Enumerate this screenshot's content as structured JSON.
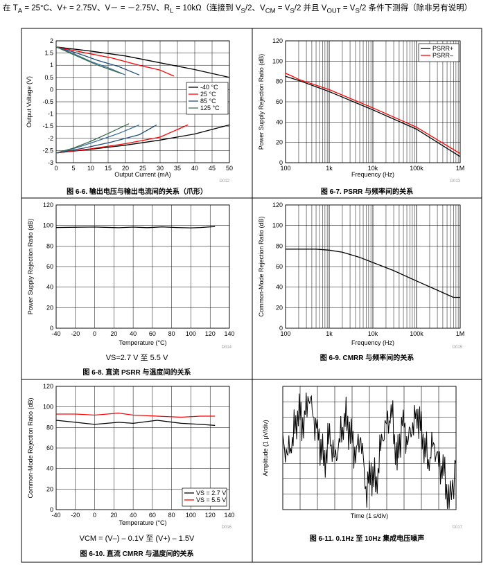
{
  "header": {
    "p1": "在 T",
    "p1sub": "A",
    "p2": " = 25°C、V+ = 2.75V、V－ = －2.75V、R",
    "p2sub": "L",
    "p3": " = 10kΩ（连接到 V",
    "p3sub": "S",
    "p4": "/2、V",
    "p4sub": "CM",
    "p5": " = V",
    "p5sub": "S",
    "p6": "/2 并且 V",
    "p6sub": "OUT",
    "p7": " = V",
    "p7sub": "S",
    "p8": "/2 条件下测得（除非另有说明）"
  },
  "colors": {
    "black": "#000000",
    "red": "#ff0000",
    "blue": "#1f4e79",
    "steel": "#3a6f9a",
    "green": "#3b6e4f"
  },
  "chart_data": [
    {
      "id": "fig-6-6",
      "type": "line",
      "title": "图 6-6. 输出电压与输出电流间的关系（爪形）",
      "xlabel": "Output Current (mA)",
      "ylabel": "Output Voltage (V)",
      "xlim": [
        0,
        50
      ],
      "ylim": [
        -3,
        2
      ],
      "xticks": [
        0,
        5,
        10,
        15,
        20,
        25,
        30,
        35,
        40,
        45,
        50
      ],
      "yticks": [
        -3,
        -2.5,
        -2,
        -1.5,
        -1,
        -0.5,
        0,
        0.5,
        1,
        1.5,
        2
      ],
      "xtick_labels": [
        "0",
        "5",
        "10",
        "15",
        "20",
        "25",
        "30",
        "35",
        "40",
        "45",
        "50"
      ],
      "ytick_labels": [
        "-3",
        "-2.5",
        "-2",
        "-1.5",
        "-1",
        "-0.5",
        "0",
        "0.5",
        "1",
        "1.5",
        "2"
      ],
      "code": "D012",
      "legend": [
        "-40 °C",
        "25 °C",
        "85 °C",
        "125 °C"
      ],
      "series": [
        {
          "name": "-40 °C",
          "color": "#000000",
          "x": [
            0,
            10,
            20,
            30,
            40,
            50
          ],
          "y": [
            1.75,
            1.58,
            1.38,
            1.1,
            0.82,
            0.5
          ]
        },
        {
          "name": "-40 °C",
          "color": "#000000",
          "x": [
            0,
            10,
            20,
            30,
            40,
            50
          ],
          "y": [
            -2.6,
            -2.45,
            -2.28,
            -2.07,
            -1.82,
            -1.45
          ]
        },
        {
          "name": "25 °C",
          "color": "#ff0000",
          "x": [
            0,
            8,
            16,
            24,
            30,
            34
          ],
          "y": [
            1.75,
            1.52,
            1.3,
            1.0,
            0.8,
            0.55
          ]
        },
        {
          "name": "25 °C",
          "color": "#ff0000",
          "x": [
            0,
            10,
            20,
            30,
            38
          ],
          "y": [
            -2.6,
            -2.43,
            -2.22,
            -1.95,
            -1.45
          ]
        },
        {
          "name": "85 °C",
          "color": "#1f4e79",
          "x": [
            0,
            6,
            12,
            18,
            24
          ],
          "y": [
            1.75,
            1.5,
            1.2,
            0.95,
            0.6
          ]
        },
        {
          "name": "85 °C",
          "color": "#1f4e79",
          "x": [
            0,
            8,
            16,
            24,
            29
          ],
          "y": [
            -2.6,
            -2.4,
            -2.15,
            -1.85,
            -1.45
          ]
        },
        {
          "name": "85 °C",
          "color": "#3a6f9a",
          "x": [
            0,
            5,
            10,
            15,
            20
          ],
          "y": [
            1.75,
            1.48,
            1.15,
            0.9,
            0.6
          ]
        },
        {
          "name": "85 °C",
          "color": "#3a6f9a",
          "x": [
            0,
            6,
            12,
            18,
            24
          ],
          "y": [
            -2.6,
            -2.38,
            -2.1,
            -1.8,
            -1.45
          ]
        },
        {
          "name": "125 °C",
          "color": "#3b6e4f",
          "x": [
            0,
            4,
            8,
            12,
            16,
            19
          ],
          "y": [
            1.75,
            1.5,
            1.25,
            1.0,
            0.8,
            0.65
          ]
        },
        {
          "name": "125 °C",
          "color": "#3b6e4f",
          "x": [
            0,
            5,
            10,
            15,
            21
          ],
          "y": [
            -2.6,
            -2.4,
            -2.12,
            -1.8,
            -1.4
          ]
        }
      ]
    },
    {
      "id": "fig-6-7",
      "type": "line",
      "title": "图 6-7. PSRR 与频率间的关系",
      "xlabel": "Frequency (Hz)",
      "ylabel": "Power Supply Rejection Ratio (dB)",
      "xscale": "log",
      "xlim": [
        100,
        1000000
      ],
      "ylim": [
        0,
        120
      ],
      "xtick_labels": [
        "100",
        "1k",
        "10k",
        "100k",
        "1M"
      ],
      "yticks": [
        0,
        20,
        40,
        60,
        80,
        100,
        120
      ],
      "ytick_labels": [
        "0",
        "20",
        "40",
        "60",
        "80",
        "100",
        "120"
      ],
      "code": "D013",
      "legend": [
        "PSRR+",
        "PSRR–"
      ],
      "series": [
        {
          "name": "PSRR+",
          "color": "#000000",
          "x": [
            100,
            200,
            1000,
            10000,
            100000,
            1000000
          ],
          "y": [
            85,
            81,
            70,
            52,
            33,
            6
          ]
        },
        {
          "name": "PSRR–",
          "color": "#ff0000",
          "x": [
            100,
            130,
            200,
            1000,
            10000,
            100000,
            1000000
          ],
          "y": [
            88,
            86,
            82,
            72,
            54,
            35,
            9
          ]
        }
      ]
    },
    {
      "id": "fig-6-8",
      "type": "line",
      "title": "图 6-8. 直流 PSRR 与温度间的关系",
      "subtitle": "VS=2.7 V 至 5.5 V",
      "xlabel": "Temperature (°C)",
      "ylabel": "Power Supply Rejection Ratio (dB)",
      "xlim": [
        -40,
        140
      ],
      "ylim": [
        0,
        120
      ],
      "xticks": [
        -40,
        -20,
        0,
        20,
        40,
        60,
        80,
        100,
        120,
        140
      ],
      "xtick_labels": [
        "-40",
        "-20",
        "0",
        "20",
        "40",
        "60",
        "80",
        "100",
        "120",
        "140"
      ],
      "yticks": [
        0,
        20,
        40,
        60,
        80,
        100,
        120
      ],
      "ytick_labels": [
        "0",
        "20",
        "40",
        "60",
        "80",
        "100",
        "120"
      ],
      "code": "D014",
      "series": [
        {
          "name": "PSRR",
          "color": "#000000",
          "x": [
            -40,
            -20,
            0,
            10,
            25,
            40,
            55,
            70,
            85,
            100,
            110,
            125
          ],
          "y": [
            98,
            98.3,
            98.5,
            98.2,
            97.8,
            98.4,
            97.9,
            98.6,
            98,
            97.7,
            98,
            99
          ]
        }
      ]
    },
    {
      "id": "fig-6-9",
      "type": "line",
      "title": "图 6-9. CMRR 与频率间的关系",
      "xlabel": "Frequency (Hz)",
      "ylabel": "Common-Mode Rejection Ratio (dB)",
      "xscale": "log",
      "xlim": [
        100,
        1000000
      ],
      "ylim": [
        0,
        120
      ],
      "xtick_labels": [
        "100",
        "1k",
        "10k",
        "100k",
        "1M"
      ],
      "yticks": [
        0,
        20,
        40,
        60,
        80,
        100,
        120
      ],
      "ytick_labels": [
        "0",
        "20",
        "40",
        "60",
        "80",
        "100",
        "120"
      ],
      "code": "D015",
      "series": [
        {
          "name": "CMRR",
          "color": "#000000",
          "x": [
            100,
            500,
            1000,
            2000,
            5000,
            10000,
            30000,
            100000,
            300000,
            700000,
            1000000
          ],
          "y": [
            77,
            77,
            76,
            74,
            69,
            64,
            56,
            46,
            37,
            30,
            30
          ]
        }
      ]
    },
    {
      "id": "fig-6-10",
      "type": "line",
      "title": "图 6-10. 直流 CMRR 与温度间的关系",
      "subtitle": "VCM = (V–) – 0.1V 至 (V+) – 1.5V",
      "xlabel": "Temperature (°C)",
      "ylabel": "Common-Mode Rejection Ratio (dB)",
      "xlim": [
        -40,
        140
      ],
      "ylim": [
        0,
        120
      ],
      "xticks": [
        -40,
        -20,
        0,
        20,
        40,
        60,
        80,
        100,
        120,
        140
      ],
      "xtick_labels": [
        "-40",
        "-20",
        "0",
        "20",
        "40",
        "60",
        "80",
        "100",
        "120",
        "140"
      ],
      "yticks": [
        0,
        20,
        40,
        60,
        80,
        100,
        120
      ],
      "ytick_labels": [
        "0",
        "20",
        "40",
        "60",
        "80",
        "100",
        "120"
      ],
      "code": "D016",
      "legend": [
        "VS = 2.7 V",
        "VS = 5.5 V"
      ],
      "series": [
        {
          "name": "VS = 2.7 V",
          "color": "#000000",
          "x": [
            -40,
            -20,
            0,
            25,
            40,
            65,
            90,
            110,
            125
          ],
          "y": [
            87,
            85,
            83,
            85,
            84,
            87,
            84,
            83,
            82
          ]
        },
        {
          "name": "VS = 5.5 V",
          "color": "#ff0000",
          "x": [
            -40,
            -20,
            0,
            25,
            40,
            65,
            90,
            110,
            125
          ],
          "y": [
            93,
            93,
            92,
            94,
            92,
            91,
            90,
            91,
            91
          ]
        }
      ]
    },
    {
      "id": "fig-6-11",
      "type": "line",
      "title": "图 6-11. 0.1Hz 至 10Hz 集成电压噪声",
      "xlabel": "Time (1 s/div)",
      "ylabel": "Amplitude (1 µV/div)",
      "xlim": [
        0,
        10
      ],
      "ylim": [
        -4,
        4
      ],
      "code": "D017",
      "series": [
        {
          "name": "Noise",
          "color": "#000000",
          "x": [
            0,
            0.3,
            0.6,
            0.9,
            1.2,
            1.5,
            1.8,
            2.1,
            2.4,
            2.7,
            3.0,
            3.3,
            3.6,
            3.9,
            4.2,
            4.5,
            4.8,
            5.1,
            5.4,
            5.7,
            6.0,
            6.3,
            6.6,
            6.9,
            7.2,
            7.5,
            7.8,
            8.1,
            8.4,
            8.7,
            9.0,
            9.3,
            9.6,
            10
          ],
          "y": [
            0.3,
            -0.4,
            0.8,
            2.4,
            1.5,
            3.5,
            1.8,
            0.6,
            -1.0,
            0.9,
            -0.8,
            0.6,
            2.0,
            1.0,
            -0.5,
            0.8,
            -2.8,
            -1.5,
            -2.4,
            0.6,
            1.6,
            2.3,
            -1.0,
            1.8,
            0.3,
            1.5,
            2.2,
            0.6,
            -0.9,
            0.4,
            -1.0,
            -1.5,
            -3.8,
            -1.0
          ]
        }
      ]
    }
  ]
}
